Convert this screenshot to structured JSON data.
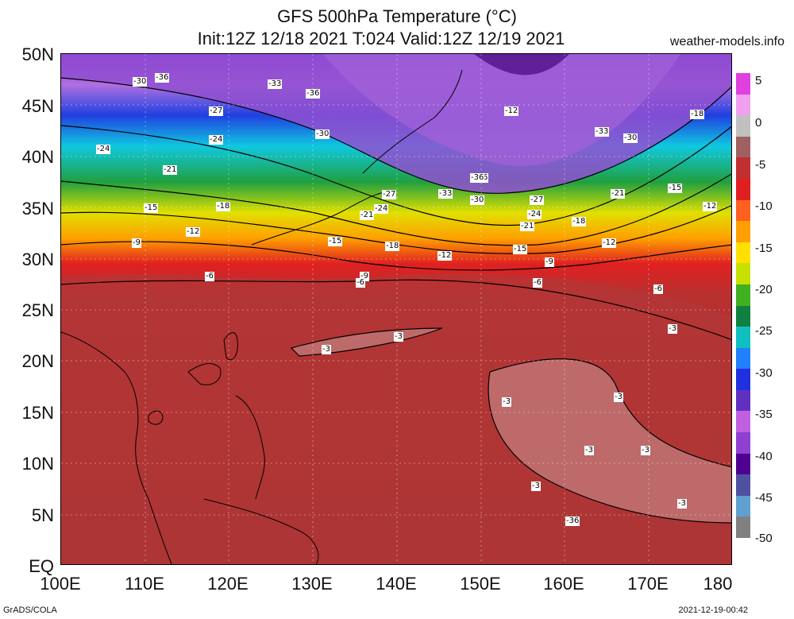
{
  "header": {
    "title_line1": "GFS 500hPa Temperature (°C)",
    "title_line2": "Init:12Z 12/18 2021 T:024 Valid:12Z 12/19 2021",
    "site": "weather-models.info"
  },
  "axes": {
    "lat_labels": [
      "50N",
      "45N",
      "40N",
      "35N",
      "30N",
      "25N",
      "20N",
      "15N",
      "10N",
      "5N",
      "EQ"
    ],
    "lon_labels": [
      "100E",
      "110E",
      "120E",
      "130E",
      "140E",
      "150E",
      "160E",
      "170E",
      "180"
    ]
  },
  "colorbar": {
    "labels": [
      "5",
      "0",
      "-5",
      "-10",
      "-15",
      "-20",
      "-25",
      "-30",
      "-35",
      "-40",
      "-45",
      "-50"
    ],
    "colors": [
      "#e040e0",
      "#f0a0f0",
      "#c0c0c0",
      "#a06060",
      "#c03030",
      "#e02020",
      "#ff6020",
      "#ffa000",
      "#ffe000",
      "#c8e000",
      "#40b020",
      "#108040",
      "#10c0c0",
      "#2080ff",
      "#2030e0",
      "#6030c0",
      "#c060e0",
      "#9040d0",
      "#500090",
      "#5050a0",
      "#60a0d0",
      "#808080"
    ]
  },
  "contour_labels": [
    "-36",
    "-30",
    "-33",
    "-36",
    "-27",
    "-24",
    "-24",
    "-30",
    "-36",
    "-33",
    "-30",
    "-18",
    "-21",
    "-21",
    "-15",
    "-18",
    "-27",
    "-24",
    "-21",
    "-27",
    "-36",
    "-33",
    "-30",
    "-24",
    "-21",
    "-15",
    "-12",
    "-18",
    "-15",
    "-12",
    "-9",
    "-12",
    "-18",
    "-15",
    "-12",
    "-6",
    "-9",
    "-6",
    "-9",
    "-6",
    "-6",
    "-3",
    "-3",
    "-3",
    "-3",
    "-3",
    "-3",
    "-3",
    "-3",
    "-3",
    "-36",
    "-12"
  ],
  "footer": {
    "left": "GrADS/COLA",
    "right": "2021-12-19-00:42"
  }
}
